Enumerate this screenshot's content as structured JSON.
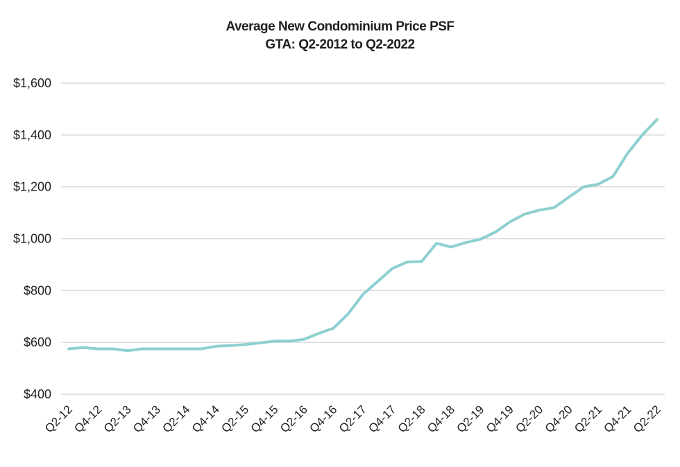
{
  "chart_data": {
    "type": "line",
    "title": "Average New Condominium Price PSF",
    "subtitle": "GTA: Q2-2012 to Q2-2022",
    "xlabel": "",
    "ylabel": "",
    "ylim": [
      400,
      1600
    ],
    "ytick_values": [
      400,
      600,
      800,
      1000,
      1200,
      1400,
      1600
    ],
    "ytick_labels": [
      "$400",
      "$600",
      "$800",
      "$1,000",
      "$1,200",
      "$1,400",
      "$1,600"
    ],
    "x_tick_labels": [
      "Q2-12",
      "Q4-12",
      "Q2-13",
      "Q4-13",
      "Q2-14",
      "Q4-14",
      "Q2-15",
      "Q4-15",
      "Q2-16",
      "Q4-16",
      "Q2-17",
      "Q4-17",
      "Q2-18",
      "Q4-18",
      "Q2-19",
      "Q4-19",
      "Q2-20",
      "Q4-20",
      "Q2-21",
      "Q4-21",
      "Q2-22"
    ],
    "grid": true,
    "line_color": "#8ecfcf",
    "series": [
      {
        "x": [
          "Q2-12",
          "Q3-12",
          "Q4-12",
          "Q1-13",
          "Q2-13",
          "Q3-13",
          "Q4-13",
          "Q1-14",
          "Q2-14",
          "Q3-14",
          "Q4-14",
          "Q1-15",
          "Q2-15",
          "Q3-15",
          "Q4-15",
          "Q1-16",
          "Q2-16",
          "Q3-16",
          "Q4-16",
          "Q1-17",
          "Q2-17",
          "Q3-17",
          "Q4-17",
          "Q1-18",
          "Q2-18",
          "Q3-18",
          "Q4-18",
          "Q1-19",
          "Q2-19",
          "Q3-19",
          "Q4-19",
          "Q1-20",
          "Q2-20",
          "Q3-20",
          "Q4-20",
          "Q1-21",
          "Q2-21",
          "Q3-21",
          "Q4-21",
          "Q1-22",
          "Q2-22"
        ],
        "values": [
          575,
          580,
          575,
          575,
          568,
          575,
          575,
          575,
          575,
          575,
          585,
          588,
          592,
          598,
          605,
          605,
          612,
          635,
          655,
          710,
          785,
          835,
          885,
          910,
          912,
          982,
          968,
          985,
          998,
          1025,
          1065,
          1095,
          1110,
          1120,
          1160,
          1200,
          1210,
          1240,
          1330,
          1400,
          1460
        ]
      }
    ]
  }
}
